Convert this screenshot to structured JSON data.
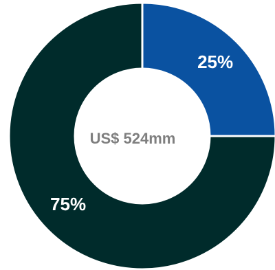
{
  "chart_data": {
    "type": "pie",
    "variant": "donut",
    "center_label": "US$ 524mm",
    "slices": [
      {
        "value": 25,
        "label": "25%",
        "color": "#0a52a1"
      },
      {
        "value": 75,
        "label": "75%",
        "color": "#002b2b"
      }
    ],
    "separator_color": "#ffffff"
  }
}
